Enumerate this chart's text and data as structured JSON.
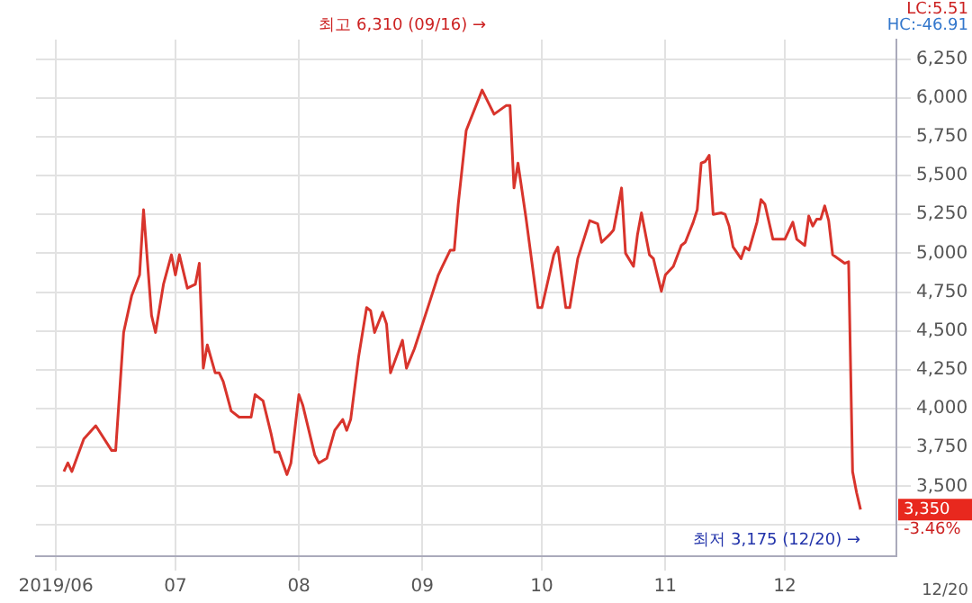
{
  "chart_data": {
    "type": "line",
    "x": [
      "2019-06-03",
      "2019-06-04",
      "2019-06-05",
      "2019-06-08",
      "2019-06-11",
      "2019-06-15",
      "2019-06-16",
      "2019-06-18",
      "2019-06-20",
      "2019-06-22",
      "2019-06-23",
      "2019-06-25",
      "2019-06-26",
      "2019-06-28",
      "2019-06-30",
      "2019-07-01",
      "2019-07-02",
      "2019-07-04",
      "2019-07-06",
      "2019-07-07",
      "2019-07-08",
      "2019-07-09",
      "2019-07-11",
      "2019-07-12",
      "2019-07-13",
      "2019-07-15",
      "2019-07-17",
      "2019-07-20",
      "2019-07-21",
      "2019-07-23",
      "2019-07-25",
      "2019-07-26",
      "2019-07-27",
      "2019-07-29",
      "2019-07-30",
      "2019-08-01",
      "2019-08-02",
      "2019-08-05",
      "2019-08-06",
      "2019-08-08",
      "2019-08-10",
      "2019-08-12",
      "2019-08-13",
      "2019-08-14",
      "2019-08-16",
      "2019-08-18",
      "2019-08-19",
      "2019-08-20",
      "2019-08-22",
      "2019-08-23",
      "2019-08-24",
      "2019-08-27",
      "2019-08-28",
      "2019-08-30",
      "2019-09-03",
      "2019-09-05",
      "2019-09-06",
      "2019-09-08",
      "2019-09-09",
      "2019-09-10",
      "2019-09-12",
      "2019-09-16",
      "2019-09-19",
      "2019-09-22",
      "2019-09-23",
      "2019-09-24",
      "2019-09-25",
      "2019-09-27",
      "2019-09-30",
      "2019-10-01",
      "2019-10-04",
      "2019-10-05",
      "2019-10-07",
      "2019-10-08",
      "2019-10-10",
      "2019-10-13",
      "2019-10-15",
      "2019-10-16",
      "2019-10-18",
      "2019-10-19",
      "2019-10-21",
      "2019-10-22",
      "2019-10-24",
      "2019-10-25",
      "2019-10-26",
      "2019-10-28",
      "2019-10-29",
      "2019-10-31",
      "2019-11-01",
      "2019-11-03",
      "2019-11-05",
      "2019-11-06",
      "2019-11-08",
      "2019-11-09",
      "2019-11-10",
      "2019-11-11",
      "2019-11-12",
      "2019-11-13",
      "2019-11-15",
      "2019-11-16",
      "2019-11-17",
      "2019-11-18",
      "2019-11-20",
      "2019-11-21",
      "2019-11-22",
      "2019-11-24",
      "2019-11-25",
      "2019-11-26",
      "2019-11-28",
      "2019-12-01",
      "2019-12-03",
      "2019-12-04",
      "2019-12-06",
      "2019-12-07",
      "2019-12-08",
      "2019-12-09",
      "2019-12-10",
      "2019-12-11",
      "2019-12-12",
      "2019-12-13",
      "2019-12-16",
      "2019-12-17",
      "2019-12-18",
      "2019-12-19",
      "2019-12-20"
    ],
    "series": [
      {
        "color": "#d8342c",
        "values": [
          3595,
          3650,
          3595,
          3805,
          3890,
          3730,
          3730,
          4490,
          4725,
          4860,
          5280,
          4600,
          4490,
          4800,
          4990,
          4860,
          4990,
          4775,
          4800,
          4935,
          4260,
          4410,
          4230,
          4230,
          4175,
          3985,
          3945,
          3945,
          4090,
          4050,
          3840,
          3720,
          3720,
          3575,
          3650,
          4090,
          4020,
          3700,
          3650,
          3680,
          3860,
          3930,
          3860,
          3930,
          4335,
          4650,
          4630,
          4490,
          4620,
          4545,
          4230,
          4440,
          4260,
          4385,
          4700,
          4860,
          4915,
          5020,
          5020,
          5315,
          5790,
          6050,
          5895,
          5950,
          5950,
          5420,
          5580,
          5230,
          4650,
          4650,
          4990,
          5040,
          4650,
          4650,
          4965,
          5210,
          5190,
          5070,
          5120,
          5150,
          5420,
          5000,
          4915,
          5120,
          5260,
          4990,
          4965,
          4755,
          4860,
          4915,
          5050,
          5070,
          5200,
          5280,
          5580,
          5590,
          5630,
          5250,
          5260,
          5250,
          5175,
          5040,
          4965,
          5040,
          5020,
          5200,
          5345,
          5315,
          5090,
          5090,
          5200,
          5090,
          5050,
          5240,
          5175,
          5220,
          5220,
          5305,
          5210,
          4990,
          4935,
          4945,
          3595,
          3460,
          3350
        ]
      }
    ],
    "xlim": [
      "2019-05-27",
      "2019-12-29"
    ],
    "xticks": [
      {
        "value": "2019-06-01",
        "label": "2019/06"
      },
      {
        "value": "2019-07-01",
        "label": "07"
      },
      {
        "value": "2019-08-01",
        "label": "08"
      },
      {
        "value": "2019-09-01",
        "label": "09"
      },
      {
        "value": "2019-10-01",
        "label": "10"
      },
      {
        "value": "2019-11-01",
        "label": "11"
      },
      {
        "value": "2019-12-01",
        "label": "12"
      }
    ],
    "ylim": [
      3050,
      6375
    ],
    "yticks": [
      {
        "value": 3250,
        "label": null
      },
      {
        "value": 3500,
        "label": "3,500"
      },
      {
        "value": 3750,
        "label": "3,750"
      },
      {
        "value": 4000,
        "label": "4,000"
      },
      {
        "value": 4250,
        "label": "4,250"
      },
      {
        "value": 4500,
        "label": "4,500"
      },
      {
        "value": 4750,
        "label": "4,750"
      },
      {
        "value": 5000,
        "label": "5,000"
      },
      {
        "value": 5250,
        "label": "5,250"
      },
      {
        "value": 5500,
        "label": "5,500"
      },
      {
        "value": 5750,
        "label": "5,750"
      },
      {
        "value": 6000,
        "label": "6,000"
      },
      {
        "value": 6250,
        "label": "6,250"
      }
    ],
    "grid": true,
    "legend": false,
    "marker": "none",
    "line_style": "solid",
    "annotations": [
      "최고 6,310 (09/16) →",
      "최저 3,175 (12/20) →",
      "3,350",
      "LC:5.51",
      "HC:-46.91",
      "-3.46%",
      "12/20"
    ]
  }
}
